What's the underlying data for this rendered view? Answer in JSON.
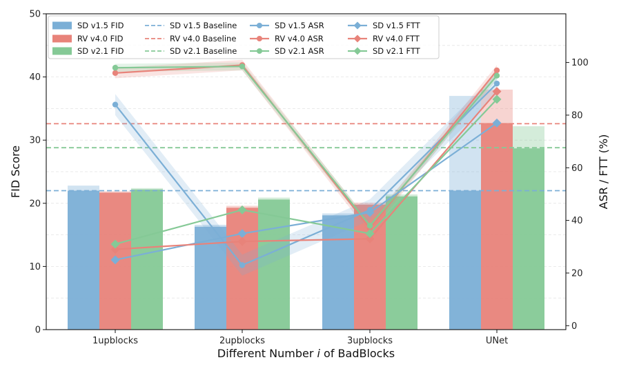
{
  "chart_data": {
    "type": "bar",
    "xlabel": "Different Number i of BadBlocks",
    "xlabel_parts": [
      "Different Number ",
      "i",
      " of BadBlocks"
    ],
    "ylabel": "FID Score",
    "y2label": "ASR / FTT (%)",
    "categories": [
      "1upblocks",
      "2upblocks",
      "3upblocks",
      "UNet"
    ],
    "ylim": [
      0,
      50
    ],
    "y2lim": [
      -1.5,
      118.5
    ],
    "yticks": [
      0,
      10,
      20,
      30,
      40,
      50
    ],
    "y2ticks": [
      0,
      20,
      40,
      60,
      80,
      100
    ],
    "grid": true,
    "legend_position": "top-left",
    "colors": {
      "SD v1.5": "#7bafd6",
      "RV v4.0": "#e8837a",
      "SD v2.1": "#85c996"
    },
    "bar_series": [
      {
        "name": "SD v1.5 FID",
        "model": "SD v1.5",
        "values": [
          22.0,
          16.3,
          18.1,
          22.0
        ],
        "upper": [
          22.8,
          16.6,
          18.4,
          37.0
        ]
      },
      {
        "name": "RV v4.0 FID",
        "model": "RV v4.0",
        "values": [
          21.7,
          19.3,
          19.8,
          32.7
        ],
        "upper": [
          21.9,
          19.6,
          20.1,
          38.0
        ]
      },
      {
        "name": "SD v2.1 FID",
        "model": "SD v2.1",
        "values": [
          22.2,
          20.6,
          21.1,
          28.7
        ],
        "upper": [
          22.4,
          20.9,
          21.4,
          32.2
        ]
      }
    ],
    "baselines": [
      {
        "name": "SD v1.5 Baseline",
        "model": "SD v1.5",
        "value": 22.0
      },
      {
        "name": "RV v4.0 Baseline",
        "model": "RV v4.0",
        "value": 32.6
      },
      {
        "name": "SD v2.1 Baseline",
        "model": "SD v2.1",
        "value": 28.8
      }
    ],
    "asr_series": [
      {
        "name": "SD v1.5 ASR",
        "model": "SD v1.5",
        "values": [
          84,
          23,
          44,
          92
        ],
        "band": 4
      },
      {
        "name": "RV v4.0 ASR",
        "model": "RV v4.0",
        "values": [
          96,
          99,
          37,
          97
        ],
        "band": 2
      },
      {
        "name": "SD v2.1 ASR",
        "model": "SD v2.1",
        "values": [
          98,
          98.5,
          38,
          95
        ],
        "band": 1.5
      }
    ],
    "ftt_series": [
      {
        "name": "SD v1.5 FTT",
        "model": "SD v1.5",
        "values": [
          25,
          35,
          43,
          77
        ]
      },
      {
        "name": "RV v4.0 FTT",
        "model": "RV v4.0",
        "values": [
          29,
          32,
          33,
          89
        ]
      },
      {
        "name": "SD v2.1 FTT",
        "model": "SD v2.1",
        "values": [
          31,
          44,
          35,
          86
        ]
      }
    ]
  }
}
